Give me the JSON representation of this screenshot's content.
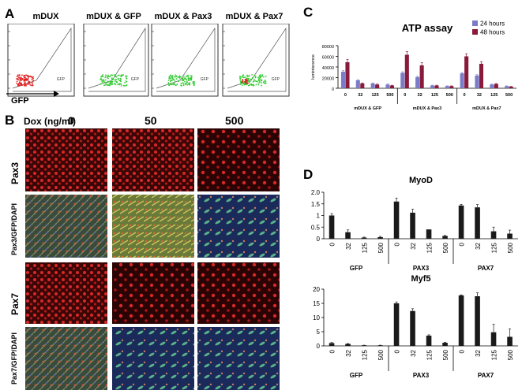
{
  "panel_a": {
    "letter": "A",
    "titles": [
      "mDUX",
      "mDUX & GFP",
      "mDUX & Pax3",
      "mDUX & Pax7"
    ],
    "gate_label": "GFP",
    "x_axis_label": "GFP",
    "colors": {
      "red_cells": "#e02020",
      "green_cells": "#33cc33"
    }
  },
  "panel_b": {
    "letter": "B",
    "dox_label": "Dox (ng/ml)",
    "doses": [
      "0",
      "50",
      "500"
    ],
    "rows": [
      "Pax3",
      "Pax3/GFP/DAPI",
      "Pax7",
      "Pax7/GFP/DAPI"
    ]
  },
  "panel_c": {
    "letter": "C"
  },
  "panel_d": {
    "letter": "D"
  },
  "chart_data": [
    {
      "type": "bar",
      "title": "ATP assay",
      "ylabel": "luminiscence",
      "ylim": [
        0,
        80000
      ],
      "yticks": [
        "0",
        "20000",
        "40000",
        "60000",
        "80000"
      ],
      "groups": [
        "mDUX & GFP",
        "mDUX & Pax3",
        "mDUX & Pax7"
      ],
      "categories": [
        "0",
        "32",
        "125",
        "500"
      ],
      "legend_position": "top-right",
      "series": [
        {
          "name": "24 hours",
          "color": "#7b7bc8",
          "values": [
            [
              31000,
              15000,
              9000,
              7000
            ],
            [
              29000,
              21000,
              5000,
              4000
            ],
            [
              28000,
              24000,
              7000,
              4000
            ]
          ],
          "errors": [
            [
              2000,
              1000,
              1000,
              1000
            ],
            [
              2000,
              1500,
              800,
              500
            ],
            [
              1500,
              1500,
              800,
              500
            ]
          ]
        },
        {
          "name": "48 hours",
          "color": "#8a1a3a",
          "values": [
            [
              49000,
              9000,
              7000,
              5000
            ],
            [
              63000,
              43000,
              5000,
              4000
            ],
            [
              60000,
              46000,
              8000,
              3000
            ]
          ],
          "errors": [
            [
              5000,
              1000,
              800,
              600
            ],
            [
              6000,
              5000,
              700,
              500
            ],
            [
              5000,
              4000,
              800,
              400
            ]
          ]
        }
      ]
    },
    {
      "type": "bar",
      "title": "MyoD",
      "ylim": [
        0,
        2.0
      ],
      "yticks": [
        "0",
        "0.5",
        "1",
        "1.5",
        "2.0"
      ],
      "groups": [
        "GFP",
        "PAX3",
        "PAX7"
      ],
      "categories": [
        "0",
        "32",
        "125",
        "500"
      ],
      "values": [
        [
          1.0,
          0.28,
          0.05,
          0.07
        ],
        [
          1.6,
          1.12,
          0.4,
          0.12
        ],
        [
          1.43,
          1.35,
          0.32,
          0.22
        ]
      ],
      "errors": [
        [
          0.08,
          0.1,
          0.02,
          0.03
        ],
        [
          0.15,
          0.15,
          0.0,
          0.02
        ],
        [
          0.05,
          0.12,
          0.18,
          0.15
        ]
      ]
    },
    {
      "type": "bar",
      "title": "Myf5",
      "ylim": [
        0,
        20
      ],
      "yticks": [
        "0",
        "5",
        "10",
        "15",
        "20"
      ],
      "groups": [
        "GFP",
        "PAX3",
        "PAX7"
      ],
      "categories": [
        "0",
        "32",
        "125",
        "500"
      ],
      "values": [
        [
          1.0,
          0.7,
          0.2,
          0.2
        ],
        [
          15.0,
          12.3,
          3.6,
          1.1
        ],
        [
          17.8,
          17.5,
          4.8,
          3.2
        ]
      ],
      "errors": [
        [
          0.2,
          0.1,
          0.05,
          0.05
        ],
        [
          0.5,
          0.8,
          0.3,
          0.2
        ],
        [
          0.2,
          1.2,
          2.8,
          2.8
        ]
      ]
    }
  ]
}
